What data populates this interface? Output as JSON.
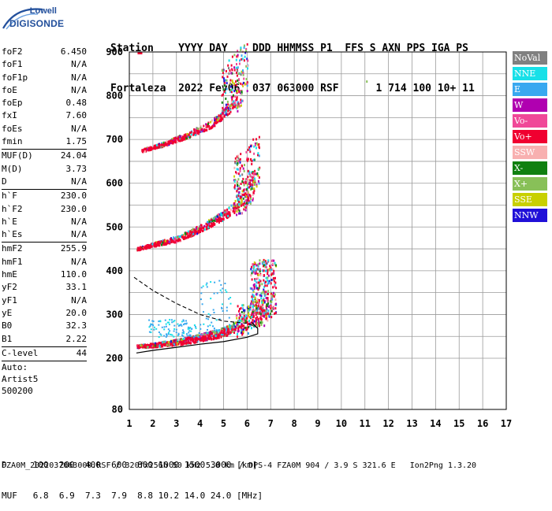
{
  "logo": {
    "top": "Lowell",
    "bottom": "DIGISONDE"
  },
  "header": {
    "line1": "Station    YYYY DAY    DDD HHMMSS P1  FFS S AXN PPS IGA PS",
    "line2": "Fortaleza  2022 Fev06  037 063000 RSF      1 714 100 10+ 11"
  },
  "params": {
    "group1": [
      {
        "k": "foF2",
        "v": "6.450"
      },
      {
        "k": "foF1",
        "v": "N/A"
      },
      {
        "k": "foF1p",
        "v": "N/A"
      },
      {
        "k": "foE",
        "v": "N/A"
      },
      {
        "k": "foEp",
        "v": "0.48"
      },
      {
        "k": "fxI",
        "v": "7.60"
      },
      {
        "k": "foEs",
        "v": "N/A"
      },
      {
        "k": "fmin",
        "v": "1.75"
      }
    ],
    "group2": [
      {
        "k": "MUF(D)",
        "v": "24.04"
      },
      {
        "k": "M(D)",
        "v": "3.73"
      },
      {
        "k": "D",
        "v": "N/A"
      }
    ],
    "group3": [
      {
        "k": "h`F",
        "v": "230.0"
      },
      {
        "k": "h`F2",
        "v": "230.0"
      },
      {
        "k": "h`E",
        "v": "N/A"
      },
      {
        "k": "h`Es",
        "v": "N/A"
      }
    ],
    "group4": [
      {
        "k": "hmF2",
        "v": "255.9"
      },
      {
        "k": "hmF1",
        "v": "N/A"
      },
      {
        "k": "hmE",
        "v": "110.0"
      },
      {
        "k": "yF2",
        "v": "33.1"
      },
      {
        "k": "yF1",
        "v": "N/A"
      },
      {
        "k": "yE",
        "v": "20.0"
      },
      {
        "k": "B0",
        "v": "32.3"
      },
      {
        "k": "B1",
        "v": "2.22"
      }
    ],
    "group5": [
      {
        "k": "C-level",
        "v": "44"
      }
    ],
    "auto": [
      "Auto:",
      "Artist5",
      "500200"
    ]
  },
  "legend": [
    {
      "label": "NoVal",
      "color": "#808080"
    },
    {
      "label": "NNE",
      "color": "#18e0e8"
    },
    {
      "label": "E",
      "color": "#38a8f0"
    },
    {
      "label": "W",
      "color": "#b000b0"
    },
    {
      "label": "Vo-",
      "color": "#f04898"
    },
    {
      "label": "Vo+",
      "color": "#f00030"
    },
    {
      "label": "SSW",
      "color": "#f8b0b0"
    },
    {
      "label": "X-",
      "color": "#108010"
    },
    {
      "label": "X+",
      "color": "#88c058"
    },
    {
      "label": "SSE",
      "color": "#c8d000"
    },
    {
      "label": "NNW",
      "color": "#2010d8"
    }
  ],
  "muf_table": {
    "line1": "D     100  200  400  600  800 1000 1500 3000 [km]",
    "line2": "MUF   6.8  6.9  7.3  7.9  8.8 10.2 14.0 24.0 [MHz]"
  },
  "footer": "FZA0M_2022037063000.RSF / 320fx256h 50 kHz 5.0 km / DPS-4 FZA0M 904 / 3.9 S 321.6 E   Ion2Png 1.3.20",
  "chart_data": {
    "type": "scatter",
    "title": "",
    "xlabel": "",
    "ylabel": "",
    "xlim": [
      1,
      17
    ],
    "ylim": [
      80,
      900
    ],
    "x_ticks": [
      1,
      2,
      3,
      4,
      5,
      6,
      7,
      8,
      9,
      10,
      11,
      12,
      13,
      14,
      15,
      16,
      17
    ],
    "y_ticks": [
      200,
      300,
      400,
      500,
      600,
      700,
      800,
      900
    ],
    "y_extra_label": 80,
    "grid": true,
    "series": [
      {
        "name": "Vo+",
        "color": "#f00030",
        "trace": [
          [
            1.3,
            228
          ],
          [
            2,
            230
          ],
          [
            3,
            236
          ],
          [
            4,
            245
          ],
          [
            5,
            258
          ],
          [
            5.8,
            275
          ],
          [
            6.3,
            295
          ],
          [
            7,
            300
          ]
        ]
      },
      {
        "name": "Vo+",
        "color": "#f00030",
        "trace": [
          [
            1.3,
            450
          ],
          [
            2,
            460
          ],
          [
            3,
            472
          ],
          [
            4,
            495
          ],
          [
            5,
            525
          ],
          [
            5.8,
            555
          ],
          [
            6.3,
            590
          ]
        ]
      },
      {
        "name": "Vo+",
        "color": "#f00030",
        "trace": [
          [
            1.5,
            675
          ],
          [
            2.5,
            690
          ],
          [
            3.5,
            710
          ],
          [
            4.5,
            735
          ],
          [
            5.3,
            770
          ],
          [
            5.8,
            800
          ]
        ]
      }
    ],
    "profile_curve": [
      [
        1.3,
        212
      ],
      [
        2,
        218
      ],
      [
        3,
        225
      ],
      [
        4,
        232
      ],
      [
        5,
        238
      ],
      [
        6,
        248
      ],
      [
        6.45,
        256
      ]
    ],
    "dashed_curve": [
      [
        1.2,
        385
      ],
      [
        2,
        355
      ],
      [
        3,
        325
      ],
      [
        4,
        300
      ],
      [
        5,
        285
      ],
      [
        6,
        280
      ],
      [
        6.45,
        270
      ]
    ]
  }
}
